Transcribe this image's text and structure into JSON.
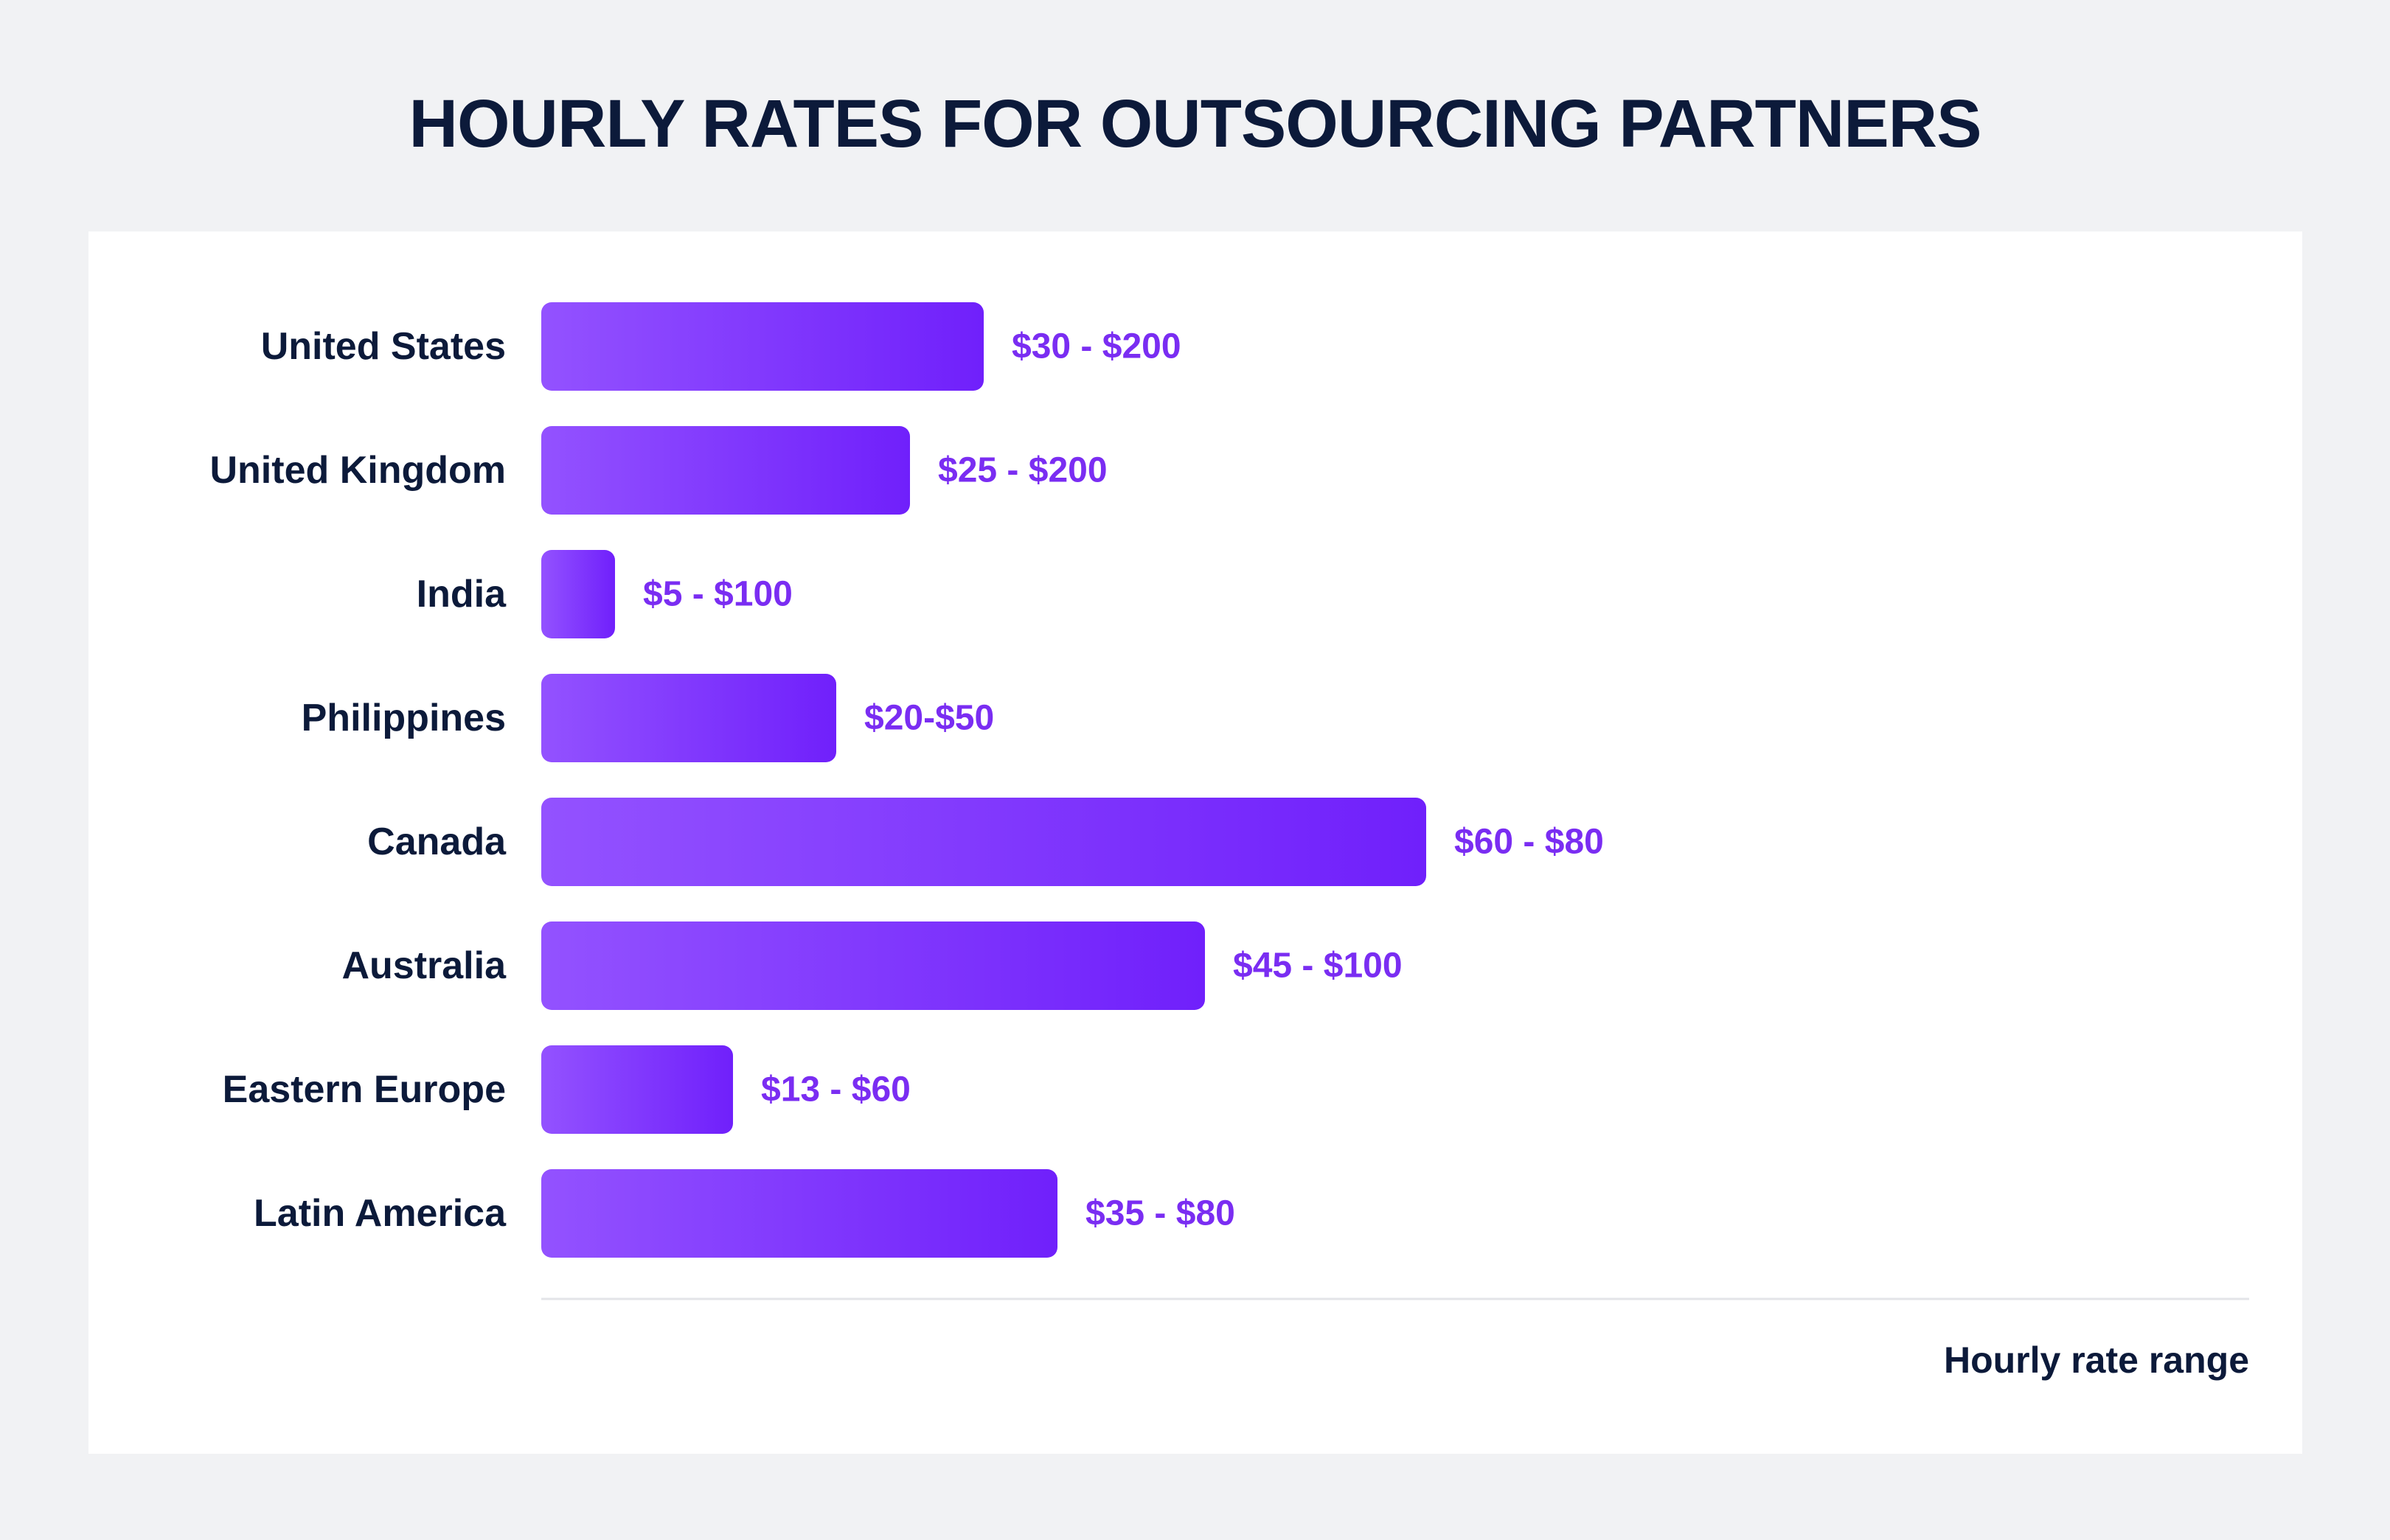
{
  "chart_data": {
    "type": "bar",
    "orientation": "horizontal",
    "title": "HOURLY RATES FOR OUTSOURCING PARTNERS",
    "xlabel": "Hourly rate range",
    "ylabel": "",
    "categories": [
      "United States",
      "United Kingdom",
      "India",
      "Philippines",
      "Canada",
      "Australia",
      "Eastern Europe",
      "Latin America"
    ],
    "value_labels": [
      "$30 - $200",
      "$25 - $200",
      "$5 - $100",
      "$20-$50",
      "$60 - $80",
      "$45 - $100",
      "$13 - $60",
      "$35 - $80"
    ],
    "values": [
      30,
      25,
      5,
      20,
      60,
      45,
      13,
      35
    ],
    "xlim": [
      0,
      100
    ],
    "grid": false,
    "legend": "none",
    "colors": {
      "bar_start": "#9352ff",
      "bar_end": "#7020fb",
      "value_text": "#7a2df2",
      "text": "#0c1a3a",
      "panel": "#ffffff",
      "background": "#f1f2f4",
      "axis_line": "#e3e4e8"
    }
  }
}
